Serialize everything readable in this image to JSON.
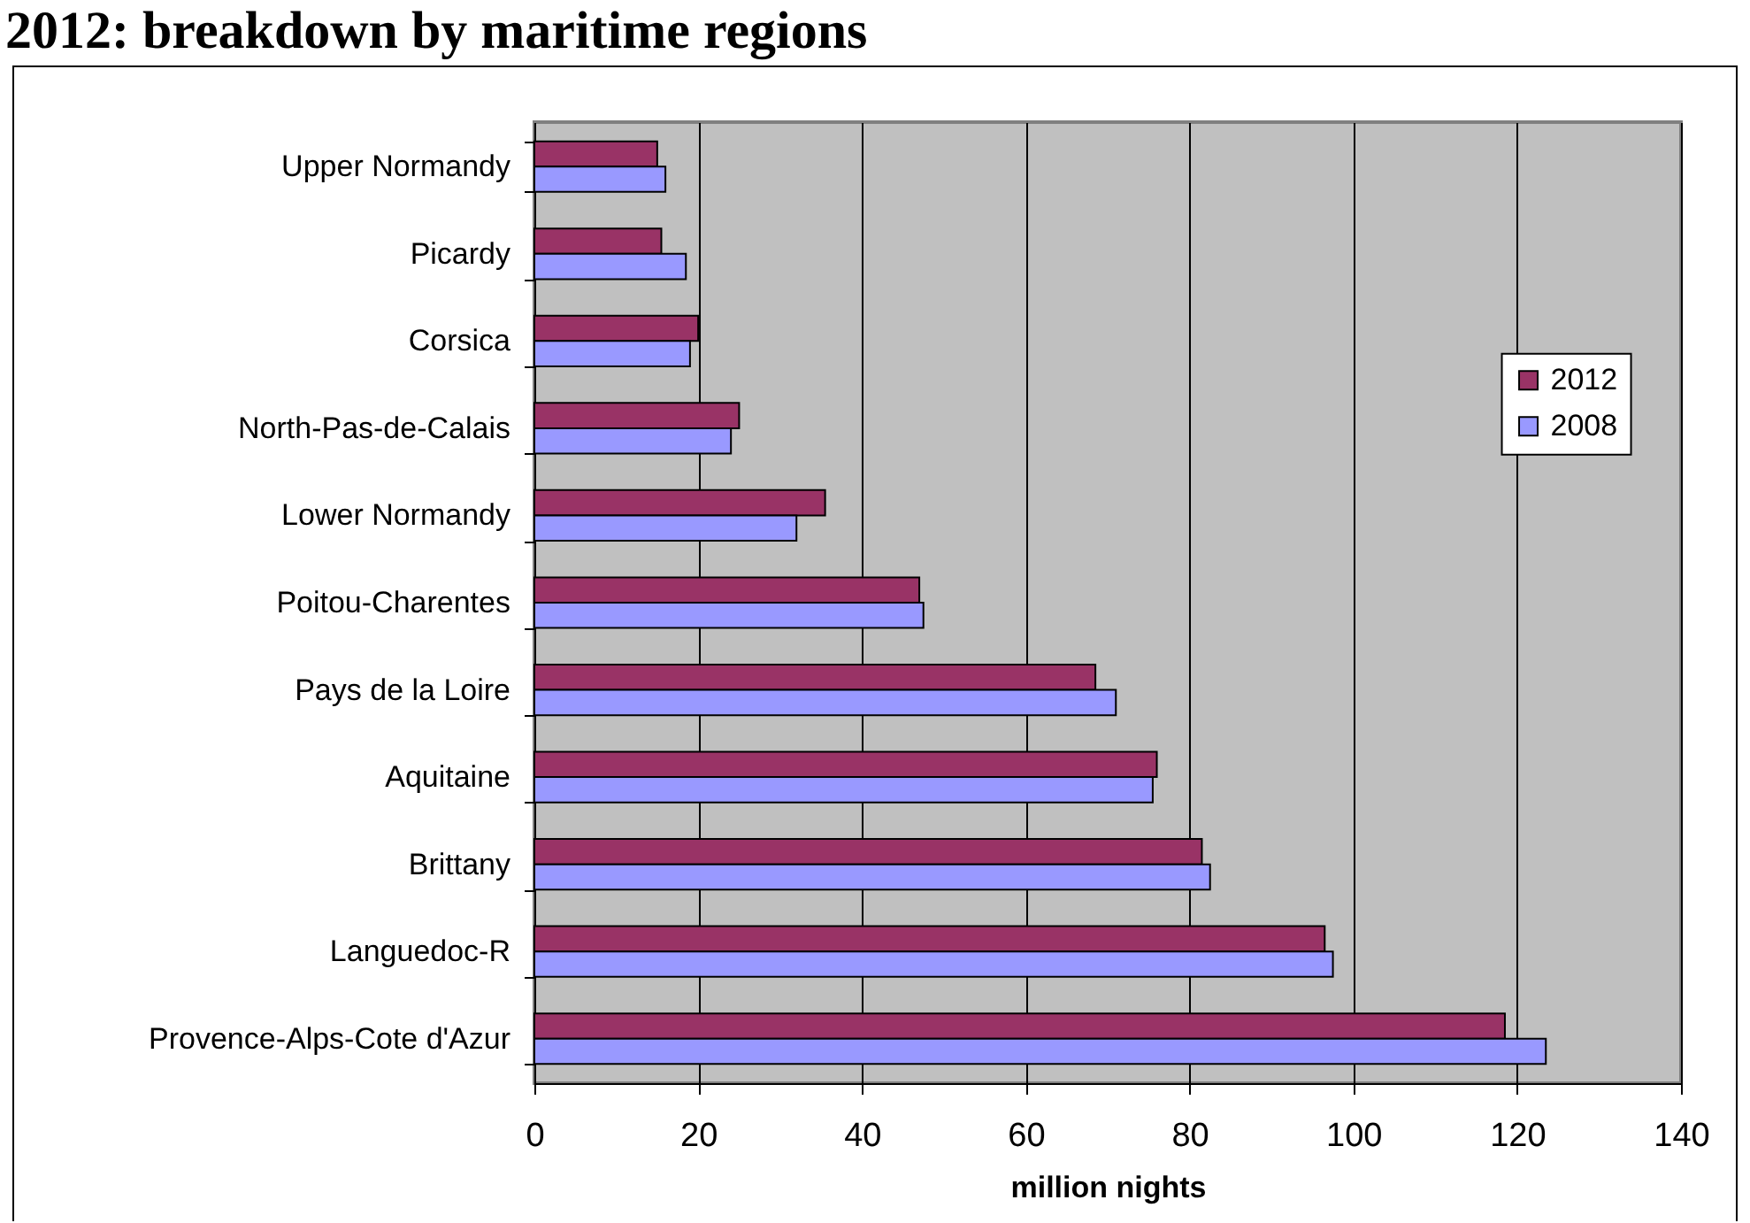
{
  "chart_data": {
    "type": "bar",
    "orientation": "horizontal",
    "title": "2012: breakdown by maritime regions",
    "xlabel": "million nights",
    "categories": [
      "Upper Normandy",
      "Picardy",
      "Corsica",
      "North-Pas-de-Calais",
      "Lower Normandy",
      "Poitou-Charentes",
      "Pays de la Loire",
      "Aquitaine",
      "Brittany",
      "Languedoc-R",
      "Provence-Alps-Cote d'Azur"
    ],
    "series": [
      {
        "name": "2012",
        "color": "#993366",
        "values": [
          15,
          15.5,
          20,
          25,
          35.5,
          47,
          68.5,
          76,
          81.5,
          96.5,
          118.5
        ]
      },
      {
        "name": "2008",
        "color": "#9999ff",
        "values": [
          16,
          18.5,
          19,
          24,
          32,
          47.5,
          71,
          75.5,
          82.5,
          97.5,
          123.5
        ]
      }
    ],
    "xlim": [
      0,
      140
    ],
    "xticks": [
      0,
      20,
      40,
      60,
      80,
      100,
      120,
      140
    ],
    "grid": "x",
    "legend": "right"
  }
}
